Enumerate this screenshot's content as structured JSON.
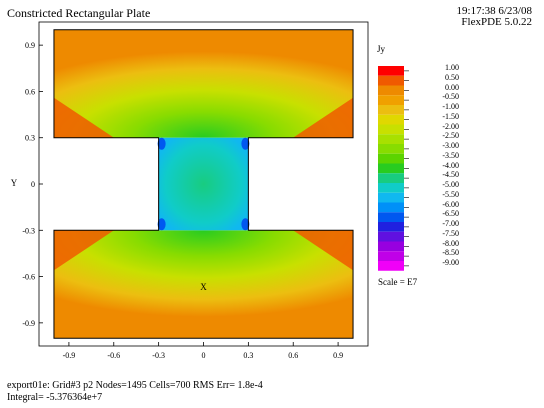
{
  "header": {
    "title": "Constricted Rectangular Plate",
    "time": "19:17:38 6/23/08",
    "version": "FlexPDE 5.0.22"
  },
  "footer": {
    "line1": "export01e:  Grid#3  p2  Nodes=1495 Cells=700 RMS Err= 1.8e-4",
    "line2": "Integral= -5.376364e+7"
  },
  "legend": {
    "title": "Jy",
    "scale": "Scale = E7",
    "levels": [
      "1.00",
      "0.50",
      "0.00",
      "-0.50",
      "-1.00",
      "-1.50",
      "-2.00",
      "-2.50",
      "-3.00",
      "-3.50",
      "-4.00",
      "-4.50",
      "-5.00",
      "-5.50",
      "-6.00",
      "-6.50",
      "-7.00",
      "-7.50",
      "-8.00",
      "-8.50",
      "-9.00"
    ],
    "colors": [
      "#ff0000",
      "#f05a00",
      "#ee8a00",
      "#f0a000",
      "#ecbe10",
      "#e0d800",
      "#c8e000",
      "#a8e000",
      "#88dc00",
      "#5cd400",
      "#28cc20",
      "#18cc80",
      "#10ccc8",
      "#10b8f0",
      "#0090f8",
      "#0058f0",
      "#2020e0",
      "#6010e0",
      "#9800e0",
      "#c000e8",
      "#f000f8"
    ]
  },
  "chart_data": {
    "type": "heatmap",
    "title": "Constricted Rectangular Plate",
    "xlabel": "X",
    "ylabel": "Y",
    "xlim": [
      -1.1,
      1.1
    ],
    "ylim": [
      -1.05,
      1.05
    ],
    "xticks": [
      "-0.9",
      "-0.6",
      "-0.3",
      "0",
      "0.3",
      "0.6",
      "0.9"
    ],
    "yticks": [
      "0.9",
      "0.6",
      "0.3",
      "0",
      "-0.3",
      "-0.6",
      "-0.9"
    ],
    "variable": "Jy",
    "scale": "E7",
    "geometry": {
      "outer": {
        "x": [
          -1.0,
          1.0
        ],
        "y": [
          -1.0,
          1.0
        ]
      },
      "neck": {
        "x": [
          -0.3,
          0.3
        ],
        "y": [
          -0.3,
          0.3
        ]
      }
    },
    "integral": "-5.376364e+7"
  }
}
